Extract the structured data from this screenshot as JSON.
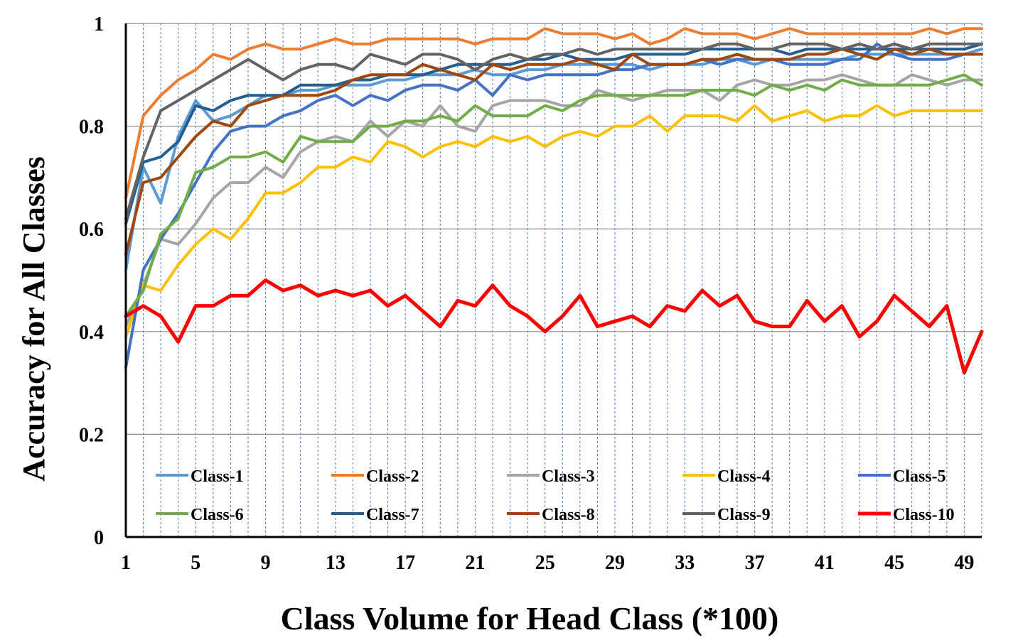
{
  "chart_data": {
    "type": "line",
    "xlabel": "Class Volume for Head Class (*100)",
    "ylabel": "Accuracy for All Classes",
    "xlim": [
      1,
      50
    ],
    "ylim": [
      0,
      1
    ],
    "x_ticks": [
      "1",
      "5",
      "9",
      "13",
      "17",
      "21",
      "25",
      "29",
      "33",
      "37",
      "41",
      "45",
      "49"
    ],
    "y_ticks": [
      "0",
      "0.2",
      "0.4",
      "0.6",
      "0.8",
      "1"
    ],
    "grid": "horizontal major gridlines, dashed vertical gridlines at every x",
    "legend_position": "bottom-inside",
    "x": [
      1,
      2,
      3,
      4,
      5,
      6,
      7,
      8,
      9,
      10,
      11,
      12,
      13,
      14,
      15,
      16,
      17,
      18,
      19,
      20,
      21,
      22,
      23,
      24,
      25,
      26,
      27,
      28,
      29,
      30,
      31,
      32,
      33,
      34,
      35,
      36,
      37,
      38,
      39,
      40,
      41,
      42,
      43,
      44,
      45,
      46,
      47,
      48,
      49,
      50
    ],
    "series": [
      {
        "name": "Class-1",
        "color": "#5B9BD5",
        "values": [
          0.52,
          0.72,
          0.65,
          0.78,
          0.85,
          0.81,
          0.82,
          0.84,
          0.86,
          0.86,
          0.87,
          0.87,
          0.88,
          0.88,
          0.88,
          0.89,
          0.89,
          0.9,
          0.9,
          0.9,
          0.91,
          0.9,
          0.9,
          0.91,
          0.91,
          0.92,
          0.92,
          0.92,
          0.92,
          0.92,
          0.91,
          0.92,
          0.92,
          0.92,
          0.93,
          0.93,
          0.92,
          0.93,
          0.93,
          0.93,
          0.93,
          0.93,
          0.94,
          0.94,
          0.94,
          0.94,
          0.94,
          0.94,
          0.94,
          0.95
        ]
      },
      {
        "name": "Class-2",
        "color": "#ED7D31",
        "values": [
          0.66,
          0.82,
          0.86,
          0.89,
          0.91,
          0.94,
          0.93,
          0.95,
          0.96,
          0.95,
          0.95,
          0.96,
          0.97,
          0.96,
          0.96,
          0.97,
          0.97,
          0.97,
          0.97,
          0.97,
          0.96,
          0.97,
          0.97,
          0.97,
          0.99,
          0.98,
          0.98,
          0.98,
          0.97,
          0.98,
          0.96,
          0.97,
          0.99,
          0.98,
          0.98,
          0.98,
          0.97,
          0.98,
          0.99,
          0.98,
          0.98,
          0.98,
          0.98,
          0.98,
          0.98,
          0.98,
          0.99,
          0.98,
          0.99,
          0.99
        ]
      },
      {
        "name": "Class-3",
        "color": "#A5A5A5",
        "values": [
          0.41,
          0.49,
          0.58,
          0.57,
          0.61,
          0.66,
          0.69,
          0.69,
          0.72,
          0.7,
          0.75,
          0.77,
          0.78,
          0.77,
          0.81,
          0.78,
          0.81,
          0.8,
          0.84,
          0.8,
          0.79,
          0.84,
          0.85,
          0.85,
          0.85,
          0.84,
          0.84,
          0.87,
          0.86,
          0.85,
          0.86,
          0.87,
          0.87,
          0.87,
          0.85,
          0.88,
          0.89,
          0.88,
          0.88,
          0.89,
          0.89,
          0.9,
          0.89,
          0.88,
          0.88,
          0.9,
          0.89,
          0.88,
          0.89,
          0.89
        ]
      },
      {
        "name": "Class-4",
        "color": "#FFC000",
        "values": [
          0.39,
          0.49,
          0.48,
          0.53,
          0.57,
          0.6,
          0.58,
          0.62,
          0.67,
          0.67,
          0.69,
          0.72,
          0.72,
          0.74,
          0.73,
          0.77,
          0.76,
          0.74,
          0.76,
          0.77,
          0.76,
          0.78,
          0.77,
          0.78,
          0.76,
          0.78,
          0.79,
          0.78,
          0.8,
          0.8,
          0.82,
          0.79,
          0.82,
          0.82,
          0.82,
          0.81,
          0.84,
          0.81,
          0.82,
          0.83,
          0.81,
          0.82,
          0.82,
          0.84,
          0.82,
          0.83,
          0.83,
          0.83,
          0.83,
          0.83
        ]
      },
      {
        "name": "Class-5",
        "color": "#4472C4",
        "values": [
          0.33,
          0.52,
          0.58,
          0.63,
          0.69,
          0.75,
          0.79,
          0.8,
          0.8,
          0.82,
          0.83,
          0.85,
          0.86,
          0.84,
          0.86,
          0.85,
          0.87,
          0.88,
          0.88,
          0.87,
          0.89,
          0.86,
          0.9,
          0.89,
          0.9,
          0.9,
          0.9,
          0.9,
          0.91,
          0.91,
          0.92,
          0.92,
          0.92,
          0.93,
          0.92,
          0.93,
          0.93,
          0.93,
          0.92,
          0.92,
          0.92,
          0.93,
          0.93,
          0.96,
          0.94,
          0.93,
          0.93,
          0.93,
          0.94,
          0.94
        ]
      },
      {
        "name": "Class-6",
        "color": "#70AD47",
        "values": [
          0.43,
          0.48,
          0.59,
          0.62,
          0.71,
          0.72,
          0.74,
          0.74,
          0.75,
          0.73,
          0.78,
          0.77,
          0.77,
          0.77,
          0.8,
          0.8,
          0.81,
          0.81,
          0.82,
          0.81,
          0.84,
          0.82,
          0.82,
          0.82,
          0.84,
          0.83,
          0.85,
          0.86,
          0.86,
          0.86,
          0.86,
          0.86,
          0.86,
          0.87,
          0.87,
          0.87,
          0.86,
          0.88,
          0.87,
          0.88,
          0.87,
          0.89,
          0.88,
          0.88,
          0.88,
          0.88,
          0.88,
          0.89,
          0.9,
          0.88
        ]
      },
      {
        "name": "Class-7",
        "color": "#255E91",
        "values": [
          0.61,
          0.73,
          0.74,
          0.77,
          0.84,
          0.83,
          0.85,
          0.86,
          0.86,
          0.86,
          0.88,
          0.88,
          0.88,
          0.89,
          0.89,
          0.9,
          0.9,
          0.9,
          0.91,
          0.92,
          0.92,
          0.92,
          0.92,
          0.93,
          0.93,
          0.94,
          0.93,
          0.93,
          0.93,
          0.94,
          0.94,
          0.94,
          0.94,
          0.95,
          0.95,
          0.95,
          0.95,
          0.95,
          0.94,
          0.95,
          0.95,
          0.95,
          0.95,
          0.95,
          0.95,
          0.95,
          0.95,
          0.95,
          0.95,
          0.96
        ]
      },
      {
        "name": "Class-8",
        "color": "#9E480E",
        "values": [
          0.55,
          0.69,
          0.7,
          0.74,
          0.78,
          0.81,
          0.8,
          0.84,
          0.85,
          0.86,
          0.86,
          0.86,
          0.87,
          0.89,
          0.9,
          0.9,
          0.9,
          0.92,
          0.91,
          0.9,
          0.89,
          0.92,
          0.91,
          0.92,
          0.92,
          0.92,
          0.93,
          0.92,
          0.91,
          0.94,
          0.92,
          0.92,
          0.92,
          0.93,
          0.93,
          0.94,
          0.93,
          0.93,
          0.93,
          0.94,
          0.94,
          0.95,
          0.94,
          0.93,
          0.95,
          0.94,
          0.95,
          0.94,
          0.94,
          0.94
        ]
      },
      {
        "name": "Class-9",
        "color": "#636363",
        "values": [
          0.62,
          0.74,
          0.83,
          0.85,
          0.87,
          0.89,
          0.91,
          0.93,
          0.91,
          0.89,
          0.91,
          0.92,
          0.92,
          0.91,
          0.94,
          0.93,
          0.92,
          0.94,
          0.94,
          0.93,
          0.91,
          0.93,
          0.94,
          0.93,
          0.94,
          0.94,
          0.95,
          0.94,
          0.95,
          0.95,
          0.95,
          0.95,
          0.95,
          0.95,
          0.96,
          0.96,
          0.95,
          0.95,
          0.96,
          0.96,
          0.96,
          0.95,
          0.96,
          0.95,
          0.96,
          0.95,
          0.96,
          0.96,
          0.96,
          0.96
        ]
      },
      {
        "name": "Class-10",
        "color": "#FF0000",
        "values": [
          0.43,
          0.45,
          0.43,
          0.38,
          0.45,
          0.45,
          0.47,
          0.47,
          0.5,
          0.48,
          0.49,
          0.47,
          0.48,
          0.47,
          0.48,
          0.45,
          0.47,
          0.44,
          0.41,
          0.46,
          0.45,
          0.49,
          0.45,
          0.43,
          0.4,
          0.43,
          0.47,
          0.41,
          0.42,
          0.43,
          0.41,
          0.45,
          0.44,
          0.48,
          0.45,
          0.47,
          0.42,
          0.41,
          0.41,
          0.46,
          0.42,
          0.45,
          0.39,
          0.42,
          0.47,
          0.44,
          0.41,
          0.45,
          0.32,
          0.4
        ]
      }
    ]
  }
}
